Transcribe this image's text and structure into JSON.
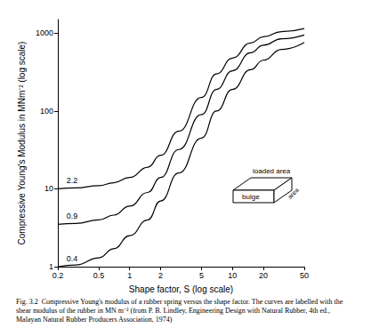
{
  "chart_data": {
    "type": "line",
    "log": true,
    "grid": false,
    "x_label": "Shape factor, S (log scale)",
    "y_label": "Compressive Young's Modulus in MNm⁻² (log scale)",
    "x": [
      0.2,
      0.3,
      0.5,
      0.7,
      1,
      1.5,
      2,
      3,
      5,
      7,
      10,
      15,
      20,
      30,
      50
    ],
    "series": [
      {
        "name": "2.2",
        "color": "#000000",
        "values": [
          10,
          10.3,
          11,
          12,
          14,
          19,
          27,
          55,
          150,
          300,
          480,
          750,
          900,
          1050,
          1150
        ]
      },
      {
        "name": "0.9",
        "color": "#000000",
        "values": [
          3.5,
          3.6,
          4,
          4.6,
          6,
          9,
          14,
          32,
          90,
          190,
          330,
          560,
          700,
          850,
          950
        ]
      },
      {
        "name": "0.4",
        "color": "#000000",
        "values": [
          1,
          1.05,
          1.3,
          1.7,
          2.5,
          4,
          7,
          16,
          45,
          100,
          190,
          340,
          450,
          620,
          760
        ]
      }
    ],
    "xlim": [
      0.2,
      50
    ],
    "xticks": [
      0.2,
      0.5,
      1,
      2,
      5,
      10,
      20,
      50
    ],
    "ylim": [
      1,
      1500
    ],
    "yticks": [
      1,
      10,
      100,
      1000
    ],
    "inset_labels": {
      "top": "loaded area",
      "front": "bulge",
      "side": "area"
    },
    "caption": "Fig. 3.2  Compressive Young's modulus of a rubber spring versus the shape factor. The curves are labelled with the shear modulus of the rubber in MN m⁻² (from P. B. Lindley, Engineering Design with Natural Rubber, 4th ed., Malayan Natural Rubber Producers Association, 1974)"
  }
}
